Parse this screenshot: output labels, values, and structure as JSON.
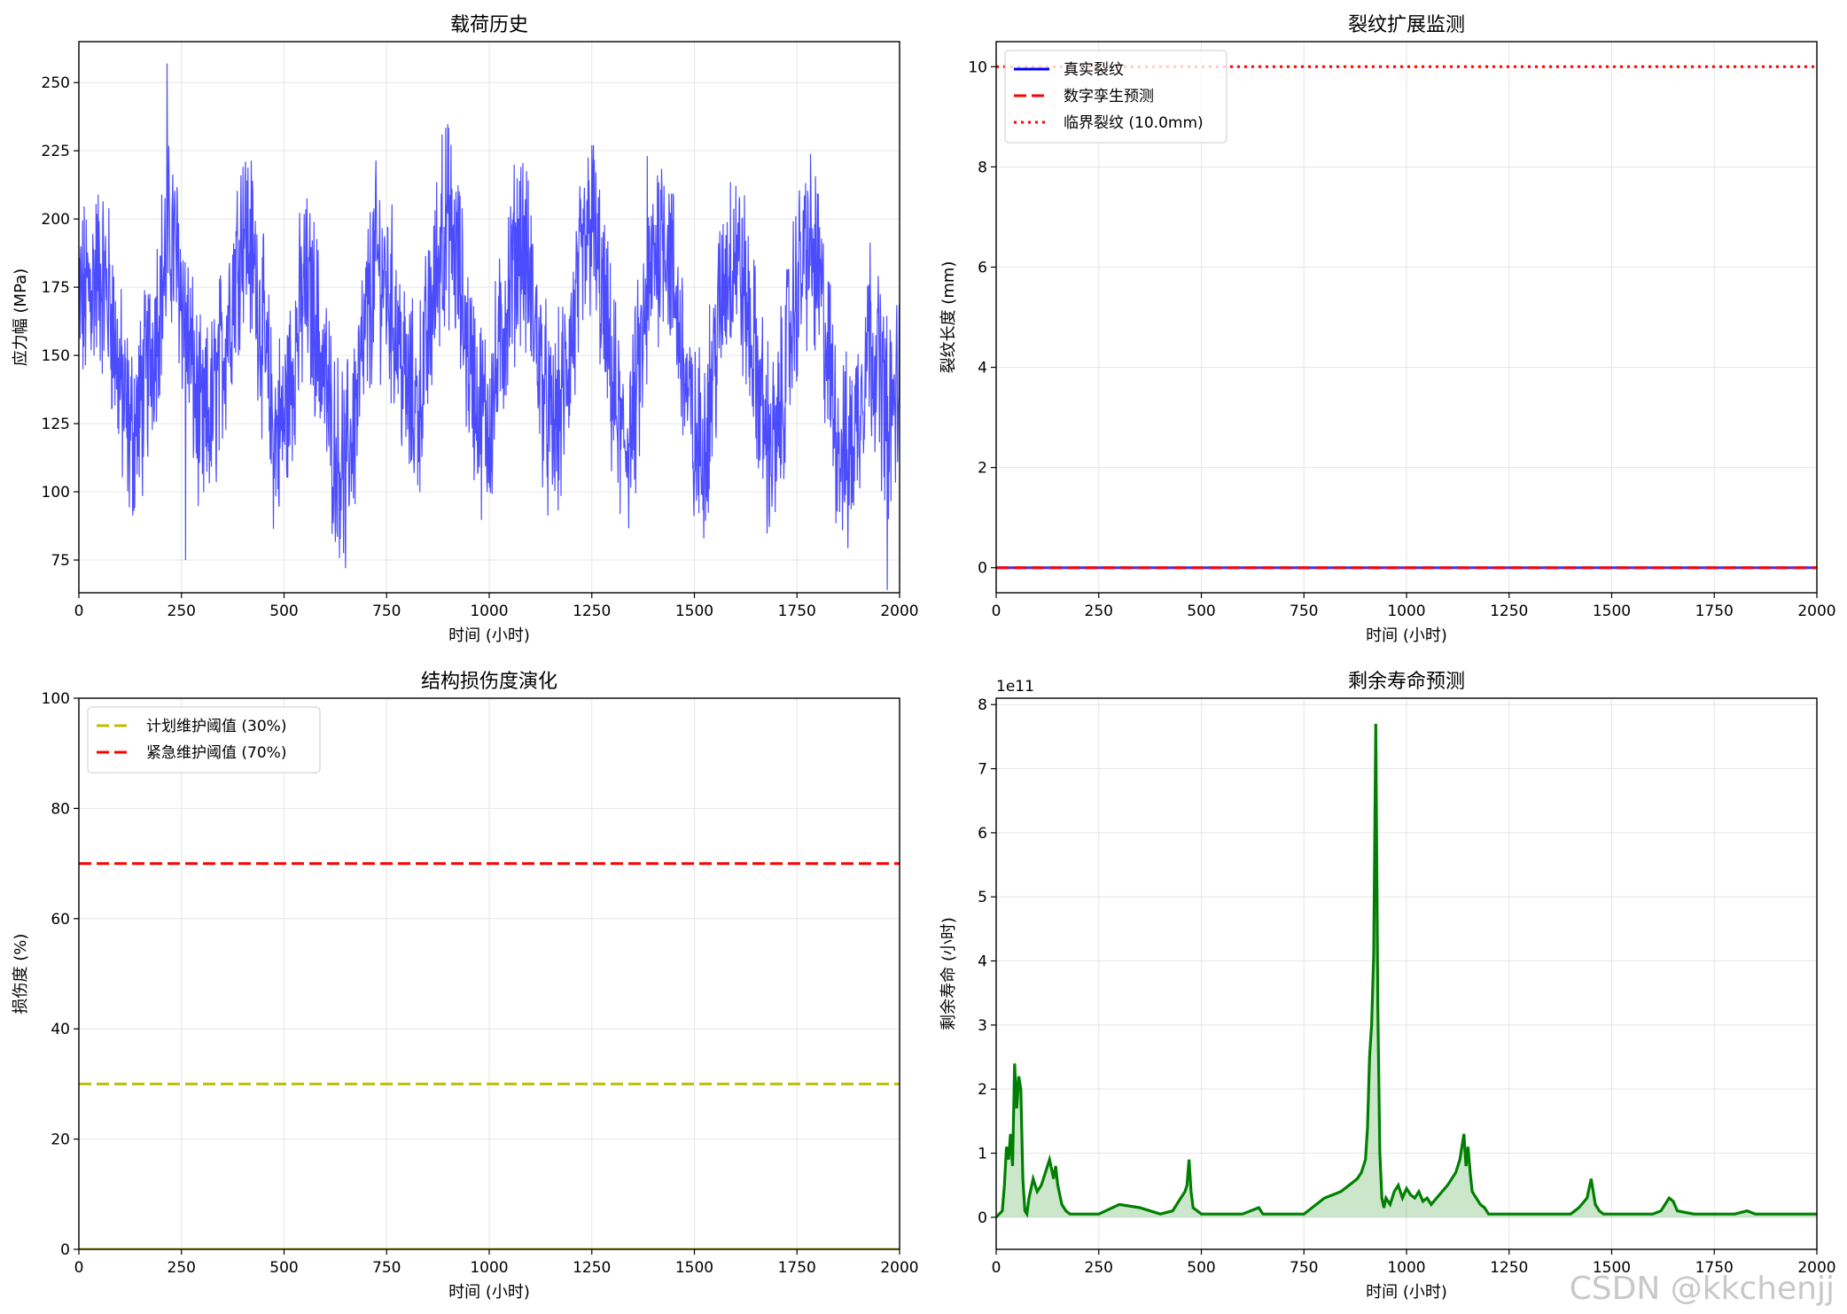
{
  "chart_data": [
    {
      "type": "line",
      "title": "载荷历史",
      "xlabel": "时间 (小时)",
      "ylabel": "应力幅 (MPa)",
      "xlim": [
        0,
        2000
      ],
      "ylim": [
        63,
        265
      ],
      "xticks": [
        "0",
        "250",
        "500",
        "750",
        "1000",
        "1250",
        "1500",
        "1750",
        "2000"
      ],
      "yticks": [
        "75",
        "100",
        "125",
        "150",
        "175",
        "200",
        "225",
        "250"
      ],
      "grid": true,
      "series": [
        {
          "color": "#0000ff",
          "x": [
            0,
            25,
            50,
            75,
            100,
            125,
            150,
            175,
            200,
            225,
            250,
            275,
            300,
            325,
            350,
            375,
            400,
            425,
            450,
            475,
            500,
            525,
            550,
            575,
            600,
            625,
            650,
            675,
            700,
            725,
            750,
            775,
            800,
            825,
            850,
            875,
            900,
            925,
            950,
            975,
            1000,
            1025,
            1050,
            1075,
            1100,
            1125,
            1150,
            1175,
            1200,
            1225,
            1250,
            1275,
            1300,
            1325,
            1350,
            1375,
            1400,
            1425,
            1450,
            1475,
            1500,
            1525,
            1550,
            1575,
            1600,
            1625,
            1650,
            1675,
            1700,
            1725,
            1750,
            1775,
            1800,
            1825,
            1850,
            1875,
            1900,
            1925,
            1950,
            1975,
            2000
          ],
          "y": [
            165,
            175,
            180,
            170,
            140,
            120,
            130,
            150,
            175,
            195,
            175,
            145,
            120,
            130,
            150,
            175,
            200,
            185,
            155,
            120,
            125,
            150,
            175,
            165,
            140,
            115,
            110,
            130,
            160,
            185,
            175,
            160,
            135,
            130,
            155,
            185,
            200,
            180,
            150,
            130,
            125,
            150,
            175,
            195,
            175,
            145,
            120,
            130,
            155,
            180,
            200,
            170,
            140,
            115,
            125,
            155,
            185,
            200,
            175,
            145,
            115,
            120,
            150,
            180,
            190,
            170,
            145,
            120,
            115,
            150,
            175,
            190,
            180,
            150,
            120,
            110,
            130,
            160,
            145,
            125,
            140
          ],
          "spikes": [
            [
              215,
              257
            ],
            [
              885,
              231
            ],
            [
              5,
              190
            ],
            [
              650,
              72
            ],
            [
              260,
              75
            ],
            [
              1970,
              62
            ],
            [
              1250,
              227
            ],
            [
              1385,
              223
            ],
            [
              1980,
              155
            ]
          ]
        }
      ]
    },
    {
      "type": "line",
      "title": "裂纹扩展监测",
      "xlabel": "时间 (小时)",
      "ylabel": "裂纹长度 (mm)",
      "xlim": [
        0,
        2000
      ],
      "ylim": [
        -0.5,
        10.5
      ],
      "xticks": [
        "0",
        "250",
        "500",
        "750",
        "1000",
        "1250",
        "1500",
        "1750",
        "2000"
      ],
      "yticks": [
        "0",
        "2",
        "4",
        "6",
        "8",
        "10"
      ],
      "grid": true,
      "legend_position": "top-left",
      "series": [
        {
          "name": "真实裂纹",
          "color": "#0000ff",
          "style": "solid",
          "x": [
            0,
            2000
          ],
          "y": [
            0,
            0
          ]
        },
        {
          "name": "数字孪生预测",
          "color": "#ff0000",
          "style": "dashed",
          "x": [
            0,
            2000
          ],
          "y": [
            0,
            0
          ]
        },
        {
          "name": "临界裂纹 (10.0mm)",
          "color": "#ff0000",
          "style": "dotted",
          "x": [
            0,
            2000
          ],
          "y": [
            10,
            10
          ]
        }
      ]
    },
    {
      "type": "line",
      "title": "结构损伤度演化",
      "xlabel": "时间 (小时)",
      "ylabel": "损伤度 (%)",
      "xlim": [
        0,
        2000
      ],
      "ylim": [
        0,
        100
      ],
      "xticks": [
        "0",
        "250",
        "500",
        "750",
        "1000",
        "1250",
        "1500",
        "1750",
        "2000"
      ],
      "yticks": [
        "0",
        "20",
        "40",
        "60",
        "80",
        "100"
      ],
      "grid": true,
      "legend_position": "top-left",
      "series": [
        {
          "color": "#bfbf00",
          "style": "solid",
          "x": [
            0,
            2000
          ],
          "y": [
            0,
            0
          ]
        },
        {
          "name": "计划维护阈值 (30%)",
          "color": "#bfbf00",
          "style": "dashed",
          "x": [
            0,
            2000
          ],
          "y": [
            30,
            30
          ]
        },
        {
          "name": "紧急维护阈值 (70%)",
          "color": "#ff0000",
          "style": "dashed",
          "x": [
            0,
            2000
          ],
          "y": [
            70,
            70
          ]
        }
      ]
    },
    {
      "type": "area",
      "title": "剩余寿命预测",
      "xlabel": "时间 (小时)",
      "ylabel": "剩余寿命 (小时)",
      "offset_text": "1e11",
      "xlim": [
        0,
        2000
      ],
      "ylim": [
        -0.5,
        8.1
      ],
      "xticks": [
        "0",
        "250",
        "500",
        "750",
        "1000",
        "1250",
        "1500",
        "1750",
        "2000"
      ],
      "yticks": [
        "0",
        "1",
        "2",
        "3",
        "4",
        "5",
        "6",
        "7",
        "8"
      ],
      "grid": true,
      "series": [
        {
          "color": "#008000",
          "x": [
            0,
            15,
            20,
            25,
            30,
            35,
            40,
            45,
            50,
            55,
            60,
            65,
            70,
            75,
            80,
            90,
            100,
            110,
            120,
            130,
            140,
            145,
            150,
            160,
            170,
            180,
            200,
            250,
            300,
            350,
            400,
            430,
            450,
            460,
            465,
            470,
            475,
            480,
            500,
            550,
            600,
            640,
            650,
            700,
            750,
            800,
            820,
            840,
            860,
            880,
            890,
            900,
            905,
            910,
            915,
            920,
            925,
            930,
            935,
            940,
            945,
            950,
            960,
            970,
            980,
            990,
            1000,
            1010,
            1020,
            1030,
            1040,
            1050,
            1060,
            1080,
            1100,
            1120,
            1130,
            1140,
            1145,
            1150,
            1155,
            1160,
            1170,
            1180,
            1190,
            1200,
            1250,
            1300,
            1350,
            1400,
            1420,
            1440,
            1450,
            1455,
            1460,
            1470,
            1480,
            1500,
            1550,
            1600,
            1620,
            1630,
            1640,
            1650,
            1660,
            1700,
            1750,
            1800,
            1830,
            1850,
            1900,
            1950,
            2000
          ],
          "y": [
            0,
            0.1,
            0.5,
            1.1,
            0.9,
            1.3,
            0.8,
            2.4,
            1.7,
            2.2,
            2.0,
            0.6,
            0.1,
            0.05,
            0.3,
            0.6,
            0.4,
            0.5,
            0.7,
            0.9,
            0.6,
            0.8,
            0.5,
            0.2,
            0.1,
            0.05,
            0.05,
            0.05,
            0.2,
            0.15,
            0.05,
            0.1,
            0.3,
            0.4,
            0.5,
            0.9,
            0.4,
            0.15,
            0.05,
            0.05,
            0.05,
            0.15,
            0.05,
            0.05,
            0.05,
            0.3,
            0.35,
            0.4,
            0.5,
            0.6,
            0.7,
            0.9,
            1.4,
            2.5,
            3.0,
            4.1,
            7.7,
            3.3,
            1.0,
            0.3,
            0.15,
            0.3,
            0.2,
            0.4,
            0.5,
            0.3,
            0.45,
            0.35,
            0.3,
            0.4,
            0.25,
            0.3,
            0.2,
            0.35,
            0.5,
            0.7,
            0.9,
            1.3,
            0.8,
            1.1,
            0.7,
            0.4,
            0.3,
            0.2,
            0.15,
            0.05,
            0.05,
            0.05,
            0.05,
            0.05,
            0.15,
            0.3,
            0.6,
            0.4,
            0.2,
            0.1,
            0.05,
            0.05,
            0.05,
            0.05,
            0.1,
            0.2,
            0.3,
            0.25,
            0.1,
            0.05,
            0.05,
            0.05,
            0.1,
            0.05,
            0.05,
            0.05,
            0.05
          ]
        }
      ]
    }
  ],
  "watermark": "CSDN @kkchenjj"
}
